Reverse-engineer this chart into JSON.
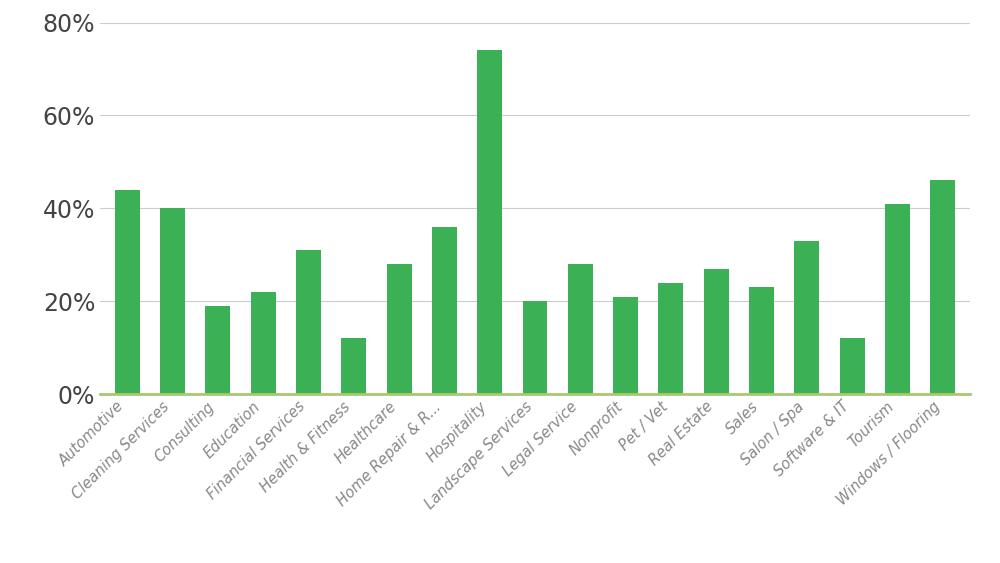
{
  "categories": [
    "Automotive",
    "Cleaning Services",
    "Consulting",
    "Education",
    "Financial Services",
    "Health & Fitness",
    "Healthcare",
    "Home Repair & R...",
    "Hospitality",
    "Landscape Services",
    "Legal Service",
    "Nonprofit",
    "Pet / Vet",
    "Real Estate",
    "Sales",
    "Salon / Spa",
    "Software & IT",
    "Tourism",
    "Windows / Flooring"
  ],
  "values": [
    44,
    40,
    19,
    22,
    31,
    12,
    28,
    36,
    74,
    20,
    28,
    21,
    24,
    27,
    23,
    33,
    12,
    41,
    46
  ],
  "bar_color": "#3cb054",
  "background_color": "#ffffff",
  "ylim": [
    0,
    80
  ],
  "yticks": [
    0,
    20,
    40,
    60,
    80
  ],
  "grid_color": "#cccccc",
  "ytick_label_color": "#444444",
  "xtick_label_color": "#888888",
  "ytick_label_fontsize": 17,
  "xtick_label_fontsize": 10.5,
  "bar_width": 0.55,
  "bottom_spine_color": "#aac870"
}
